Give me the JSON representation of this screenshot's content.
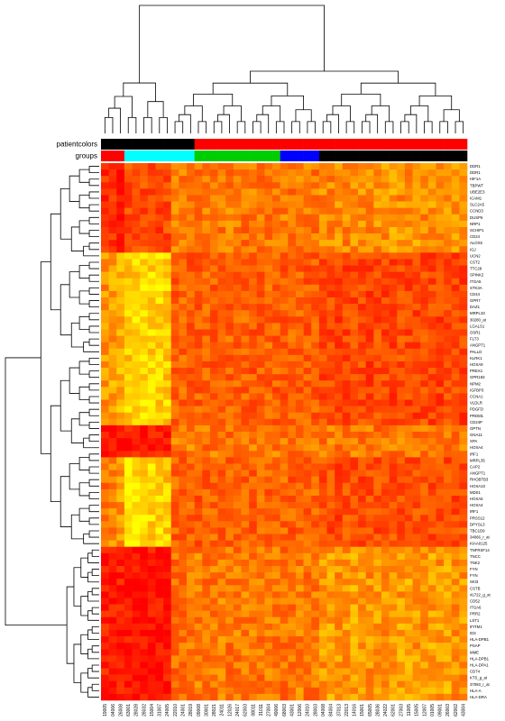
{
  "chart_data": {
    "type": "heatmap",
    "title": "",
    "annotation_bars": [
      {
        "label": "patientcolors",
        "colors": [
          "#000000",
          "#000000",
          "#000000",
          "#000000",
          "#000000",
          "#000000",
          "#000000",
          "#000000",
          "#000000",
          "#000000",
          "#000000",
          "#000000",
          "#FF0000",
          "#FF0000",
          "#FF0000",
          "#FF0000",
          "#FF0000",
          "#FF0000",
          "#FF0000",
          "#FF0000",
          "#FF0000",
          "#FF0000",
          "#FF0000",
          "#FF0000",
          "#FF0000",
          "#FF0000",
          "#FF0000",
          "#FF0000",
          "#FF0000",
          "#FF0000",
          "#FF0000",
          "#FF0000",
          "#FF0000",
          "#FF0000",
          "#FF0000",
          "#FF0000",
          "#FF0000",
          "#FF0000",
          "#FF0000",
          "#FF0000",
          "#FF0000",
          "#FF0000",
          "#FF0000",
          "#FF0000",
          "#FF0000",
          "#FF0000",
          "#FF0000"
        ]
      },
      {
        "label": "groups",
        "colors": [
          "#FF0000",
          "#FF0000",
          "#FF0000",
          "#00FFFF",
          "#00FFFF",
          "#00FFFF",
          "#00FFFF",
          "#00FFFF",
          "#00FFFF",
          "#00FFFF",
          "#00FFFF",
          "#00FFFF",
          "#00CD00",
          "#00CD00",
          "#00CD00",
          "#00CD00",
          "#00CD00",
          "#00CD00",
          "#00CD00",
          "#00CD00",
          "#00CD00",
          "#00CD00",
          "#00CD00",
          "#0000FF",
          "#0000FF",
          "#0000FF",
          "#0000FF",
          "#0000FF",
          "#000000",
          "#000000",
          "#000000",
          "#000000",
          "#000000",
          "#000000",
          "#000000",
          "#000000",
          "#000000",
          "#000000",
          "#000000",
          "#000000",
          "#000000",
          "#000000",
          "#000000",
          "#000000",
          "#000000",
          "#000000",
          "#000000"
        ]
      }
    ],
    "columns": [
      "19005",
      "04006",
      "26008",
      "63001",
      "28028",
      "28032",
      "15004",
      "31007",
      "24005",
      "22010",
      "24001",
      "28019",
      "09008",
      "30001",
      "28021",
      "24011",
      "12026",
      "24017",
      "62003",
      "08011",
      "31011",
      "27004",
      "49006",
      "68003",
      "43001",
      "12006",
      "24010",
      "28003",
      "04008",
      "84004",
      "37013",
      "22013",
      "14016",
      "15001",
      "65005",
      "28036",
      "24022",
      "62001",
      "27003",
      "11005",
      "15005",
      "12007",
      "01005",
      "09001",
      "26003",
      "62002",
      "43004"
    ],
    "rows": [
      "DDR1",
      "DDR1",
      "HIF1A",
      "TBPWT",
      "UBE2E3",
      "ICAM1",
      "SLC2A5",
      "CCND3",
      "DUSP6",
      "NRP1",
      "SCHIP1",
      "CD24",
      "ALOX5",
      "IGJ",
      "UCN2",
      "CST2",
      "TTC28",
      "SPINK2",
      "ITGA5",
      "STK3A",
      "CD44",
      "GPR7",
      "DAZ1",
      "MRPL33",
      "30280_at",
      "LGALS1",
      "OSR1",
      "FLT3",
      "ANGPT1",
      "PALLD",
      "KLRK1",
      "HOXA9",
      "PREX1",
      "GPR183",
      "NPM2",
      "IGFBP3",
      "CCNA1",
      "VLDLR",
      "PDGFD",
      "PRDM1",
      "CD24P",
      "OPTN",
      "GNA11",
      "XPA",
      "HOXA4",
      "IRF1",
      "MRPL35",
      "CAP2",
      "ANGPT1",
      "RHOBTB3",
      "HOXA10",
      "MDS1",
      "HOXA5",
      "HOXA4",
      "IRF1",
      "PRSS12",
      "DPYSL3",
      "TBC1D9",
      "34066_r_at",
      "KIAA0125",
      "TNFRSF14",
      "TNCC",
      "TNK2",
      "FYN",
      "FYN",
      "SKI3",
      "CSTB",
      "41722_g_at",
      "CD52",
      "ITGA6",
      "PRR2",
      "LST1",
      "IFITM1",
      "ID3",
      "HLA-DPB1",
      "PSAP",
      "MME",
      "HLA-DPB1",
      "HLA-DPA1",
      "CD74",
      "KTS_g_at",
      "37093_r_at",
      "HLA-A",
      "HLA-DRA"
    ],
    "colorscale": [
      "#FF0000",
      "#FF7500",
      "#FFFF00"
    ],
    "value_range": [
      0,
      1
    ],
    "row_blocks": [
      {
        "start": 0,
        "end": 13,
        "levels": [
          0.18,
          0.2,
          0.1,
          0.32,
          0.3,
          0.32,
          0.3,
          0.28,
          0.32,
          0.5,
          0.5,
          0.48,
          0.5,
          0.52,
          0.48,
          0.5,
          0.52,
          0.5,
          0.48,
          0.52,
          0.5,
          0.48,
          0.5,
          0.52,
          0.48,
          0.5,
          0.52,
          0.5,
          0.55,
          0.56,
          0.6,
          0.56,
          0.58,
          0.6,
          0.56,
          0.58,
          0.6,
          0.62,
          0.58,
          0.6,
          0.62,
          0.58,
          0.6,
          0.56,
          0.6,
          0.62,
          0.58
        ]
      },
      {
        "start": 14,
        "end": 40,
        "levels": [
          0.6,
          0.65,
          0.7,
          0.82,
          0.85,
          0.88,
          0.86,
          0.84,
          0.82,
          0.4,
          0.42,
          0.38,
          0.4,
          0.42,
          0.4,
          0.38,
          0.42,
          0.4,
          0.42,
          0.38,
          0.4,
          0.42,
          0.4,
          0.38,
          0.42,
          0.4,
          0.38,
          0.4,
          0.3,
          0.32,
          0.28,
          0.3,
          0.32,
          0.3,
          0.28,
          0.32,
          0.3,
          0.28,
          0.32,
          0.3,
          0.28,
          0.32,
          0.3,
          0.28,
          0.32,
          0.3,
          0.28
        ]
      },
      {
        "start": 41,
        "end": 45,
        "levels": [
          0.1,
          0.08,
          0.1,
          0.12,
          0.1,
          0.08,
          0.12,
          0.1,
          0.1,
          0.5,
          0.48,
          0.52,
          0.5,
          0.48,
          0.5,
          0.52,
          0.48,
          0.5,
          0.5,
          0.52,
          0.48,
          0.5,
          0.52,
          0.48,
          0.5,
          0.48,
          0.52,
          0.5,
          0.5,
          0.52,
          0.48,
          0.5,
          0.52,
          0.48,
          0.5,
          0.48,
          0.52,
          0.5,
          0.5,
          0.52,
          0.48,
          0.5,
          0.52,
          0.48,
          0.5,
          0.48,
          0.52
        ]
      },
      {
        "start": 46,
        "end": 59,
        "levels": [
          0.45,
          0.55,
          0.62,
          0.92,
          0.9,
          0.88,
          0.86,
          0.84,
          0.8,
          0.42,
          0.4,
          0.42,
          0.38,
          0.4,
          0.42,
          0.38,
          0.4,
          0.42,
          0.4,
          0.38,
          0.42,
          0.4,
          0.38,
          0.42,
          0.4,
          0.38,
          0.4,
          0.42,
          0.34,
          0.32,
          0.3,
          0.34,
          0.32,
          0.3,
          0.34,
          0.32,
          0.3,
          0.34,
          0.32,
          0.3,
          0.34,
          0.32,
          0.3,
          0.34,
          0.32,
          0.3,
          0.34
        ]
      },
      {
        "start": 60,
        "end": 83,
        "levels": [
          0.12,
          0.1,
          0.12,
          0.06,
          0.05,
          0.04,
          0.06,
          0.05,
          0.08,
          0.45,
          0.48,
          0.5,
          0.52,
          0.48,
          0.5,
          0.52,
          0.48,
          0.5,
          0.52,
          0.5,
          0.48,
          0.52,
          0.5,
          0.48,
          0.5,
          0.52,
          0.48,
          0.5,
          0.62,
          0.64,
          0.6,
          0.62,
          0.66,
          0.62,
          0.6,
          0.64,
          0.62,
          0.6,
          0.64,
          0.66,
          0.62,
          0.6,
          0.64,
          0.62,
          0.66,
          0.6,
          0.62
        ]
      }
    ]
  }
}
